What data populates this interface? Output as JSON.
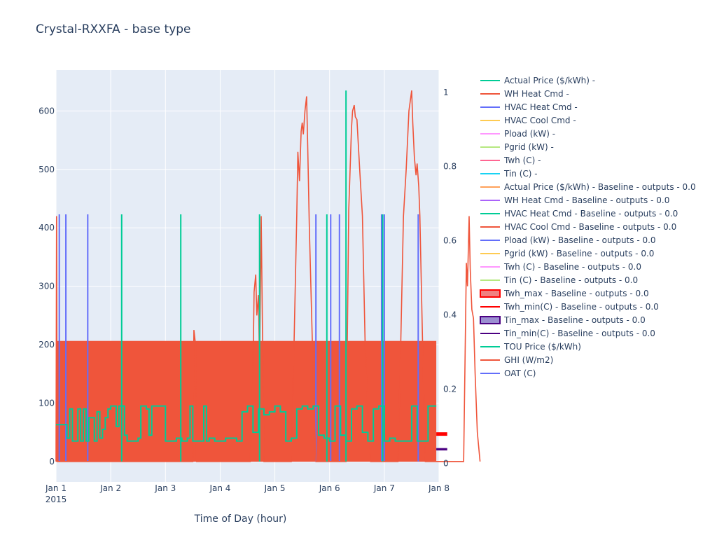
{
  "chart_data": {
    "type": "line",
    "title": "Crystal-RXXFA - base type",
    "xlabel": "Time of Day (hour)",
    "ylabel": "",
    "y2label": "",
    "x_range": [
      "2015-01-01",
      "2015-01-08"
    ],
    "x_ticks": [
      "Jan 1",
      "Jan 2",
      "Jan 3",
      "Jan 4",
      "Jan 5",
      "Jan 6",
      "Jan 7",
      "Jan 8"
    ],
    "x_tick_year": "2015",
    "ylim": [
      -35,
      670
    ],
    "y_ticks": [
      0,
      100,
      200,
      300,
      400,
      500,
      600
    ],
    "y2lim": [
      -0.05,
      1.06
    ],
    "y2_ticks": [
      0,
      0.2,
      0.4,
      0.6,
      0.8,
      1
    ],
    "grid": true,
    "legend_position": "right",
    "legend": [
      {
        "name": "Actual Price ($/kWh) -",
        "color": "#00cc96",
        "style": "line"
      },
      {
        "name": "WH Heat Cmd -",
        "color": "#ef553b",
        "style": "line"
      },
      {
        "name": "HVAC Heat Cmd -",
        "color": "#636efa",
        "style": "line"
      },
      {
        "name": "HVAC Cool Cmd -",
        "color": "#fecb52",
        "style": "line"
      },
      {
        "name": "Pload (kW) -",
        "color": "#ff97ff",
        "style": "line"
      },
      {
        "name": "Pgrid (kW) -",
        "color": "#b6e880",
        "style": "line"
      },
      {
        "name": "Twh (C) -",
        "color": "#ff6692",
        "style": "line"
      },
      {
        "name": "Tin (C) -",
        "color": "#19d3f3",
        "style": "line"
      },
      {
        "name": "Actual Price ($/kWh) - Baseline - outputs  - 0.0",
        "color": "#ffa15a",
        "style": "line"
      },
      {
        "name": "WH Heat Cmd - Baseline - outputs  - 0.0",
        "color": "#ab63fa",
        "style": "line"
      },
      {
        "name": "HVAC Heat Cmd - Baseline - outputs  - 0.0",
        "color": "#00cc96",
        "style": "line"
      },
      {
        "name": "HVAC Cool Cmd - Baseline - outputs  - 0.0",
        "color": "#ef553b",
        "style": "line"
      },
      {
        "name": "Pload (kW) - Baseline - outputs  - 0.0",
        "color": "#636efa",
        "style": "line"
      },
      {
        "name": "Pgrid (kW) - Baseline - outputs  - 0.0",
        "color": "#fecb52",
        "style": "line"
      },
      {
        "name": "Twh (C) - Baseline - outputs  - 0.0",
        "color": "#ff97ff",
        "style": "line"
      },
      {
        "name": "Tin (C) - Baseline - outputs  - 0.0",
        "color": "#b6e880",
        "style": "line"
      },
      {
        "name": "Twh_max - Baseline - outputs  - 0.0",
        "color": "#ff0000",
        "fill": "#f08080",
        "style": "band"
      },
      {
        "name": "Twh_min(C) - Baseline - outputs  - 0.0",
        "color": "#ff0000",
        "style": "line"
      },
      {
        "name": "Tin_max - Baseline - outputs  - 0.0",
        "color": "#4b0082",
        "fill": "#9b8fd1",
        "style": "band"
      },
      {
        "name": "Tin_min(C) - Baseline - outputs  - 0.0",
        "color": "#4b0082",
        "style": "line"
      },
      {
        "name": "TOU Price ($/kWh)",
        "color": "#00cc96",
        "style": "line"
      },
      {
        "name": "GHI (W/m2)",
        "color": "#ef553b",
        "style": "line"
      },
      {
        "name": "OAT (C)",
        "color": "#636efa",
        "style": "line"
      }
    ],
    "series": {
      "hvac_cool_block": {
        "name": "HVAC Cool Cmd - Baseline - outputs  - 0.0",
        "color": "#ef553b",
        "y2_value": 0.33,
        "x": [
          0,
          6.95
        ]
      },
      "ghi": {
        "name": "GHI (W/m2)",
        "color": "#ef553b",
        "x": [
          0,
          0.01,
          0.02,
          2.5,
          2.52,
          2.55,
          2.57,
          2.6,
          3.55,
          3.6,
          3.62,
          3.65,
          3.67,
          3.7,
          3.72,
          3.75,
          3.8,
          4.3,
          4.35,
          4.4,
          4.42,
          4.45,
          4.48,
          4.5,
          4.52,
          4.55,
          4.58,
          4.6,
          4.63,
          4.7,
          4.75,
          5.3,
          5.35,
          5.4,
          5.42,
          5.45,
          5.47,
          5.5,
          5.55,
          5.6,
          5.65,
          5.7,
          5.75,
          6.25,
          6.3,
          6.35,
          6.4,
          6.45,
          6.5,
          6.52,
          6.55,
          6.58,
          6.6,
          6.63,
          6.65,
          6.7,
          6.75,
          7.45,
          7.5,
          7.52,
          7.55,
          7.57,
          7.6,
          7.63,
          7.66,
          7.7,
          7.75
        ],
        "y": [
          0,
          420,
          0,
          0,
          225,
          200,
          0,
          0,
          0,
          150,
          290,
          320,
          250,
          285,
          160,
          420,
          0,
          0,
          200,
          420,
          530,
          480,
          565,
          580,
          560,
          600,
          625,
          540,
          400,
          150,
          0,
          0,
          430,
          570,
          600,
          610,
          590,
          585,
          500,
          420,
          200,
          80,
          0,
          0,
          200,
          420,
          500,
          600,
          635,
          580,
          520,
          490,
          510,
          470,
          420,
          200,
          0,
          0,
          340,
          300,
          420,
          330,
          260,
          245,
          150,
          50,
          0
        ]
      },
      "tou_price_spikes": {
        "name": "TOU Price ($/kWh)",
        "color": "#00cc96",
        "x": [
          1.2,
          2.28,
          3.72,
          4.95,
          5.3,
          5.97
        ],
        "y": [
          423,
          423,
          423,
          423,
          635,
          423
        ]
      },
      "oat_spikes": {
        "name": "OAT (C)",
        "color": "#636efa",
        "x": [
          0.06,
          0.18,
          0.58,
          4.75,
          5.02,
          5.18,
          5.95,
          6.62,
          6.0
        ],
        "y": [
          423,
          423,
          423,
          423,
          423,
          423,
          423,
          423,
          423
        ]
      },
      "actual_price": {
        "name": "Actual Price ($/kWh) -",
        "color": "#00cc96",
        "x": [
          0,
          0.15,
          0.2,
          0.25,
          0.3,
          0.4,
          0.45,
          0.5,
          0.55,
          0.6,
          0.7,
          0.75,
          0.8,
          0.85,
          0.9,
          0.95,
          1.0,
          1.05,
          1.1,
          1.15,
          1.2,
          1.25,
          1.3,
          1.4,
          1.5,
          1.55,
          1.6,
          1.65,
          1.7,
          1.75,
          1.8,
          2.0,
          2.1,
          2.2,
          2.3,
          2.4,
          2.45,
          2.5,
          2.6,
          2.7,
          2.75,
          2.8,
          2.9,
          3.0,
          3.1,
          3.2,
          3.3,
          3.4,
          3.5,
          3.6,
          3.7,
          3.8,
          3.9,
          4.0,
          4.1,
          4.2,
          4.3,
          4.4,
          4.5,
          4.6,
          4.7,
          4.8,
          4.9,
          5.0,
          5.1,
          5.2,
          5.3,
          5.4,
          5.5,
          5.6,
          5.7,
          5.8,
          5.9,
          6.0,
          6.1,
          6.2,
          6.3,
          6.4,
          6.5,
          6.6,
          6.7,
          6.8,
          6.9,
          6.95
        ],
        "y": [
          63,
          63,
          40,
          90,
          35,
          90,
          35,
          90,
          35,
          75,
          35,
          85,
          40,
          55,
          75,
          90,
          95,
          95,
          60,
          95,
          95,
          45,
          35,
          35,
          40,
          95,
          95,
          90,
          45,
          95,
          95,
          35,
          35,
          40,
          35,
          40,
          95,
          35,
          35,
          95,
          35,
          40,
          35,
          35,
          40,
          40,
          35,
          85,
          95,
          50,
          90,
          80,
          85,
          95,
          85,
          35,
          40,
          90,
          95,
          90,
          95,
          45,
          40,
          35,
          95,
          45,
          35,
          90,
          95,
          50,
          35,
          90,
          95,
          35,
          40,
          35,
          35,
          35,
          95,
          35,
          35,
          95,
          95,
          95
        ]
      },
      "twh_band": {
        "name": "Twh_max - Baseline - outputs  - 0.0",
        "color": "#ff0000",
        "y": [
          44,
          50
        ],
        "x": [
          6.95,
          7.15
        ]
      },
      "tin_band": {
        "name": "Tin_max - Baseline - outputs  - 0.0",
        "color": "#4b0082",
        "y": [
          19,
          23
        ],
        "x": [
          6.95,
          7.15
        ]
      }
    }
  }
}
